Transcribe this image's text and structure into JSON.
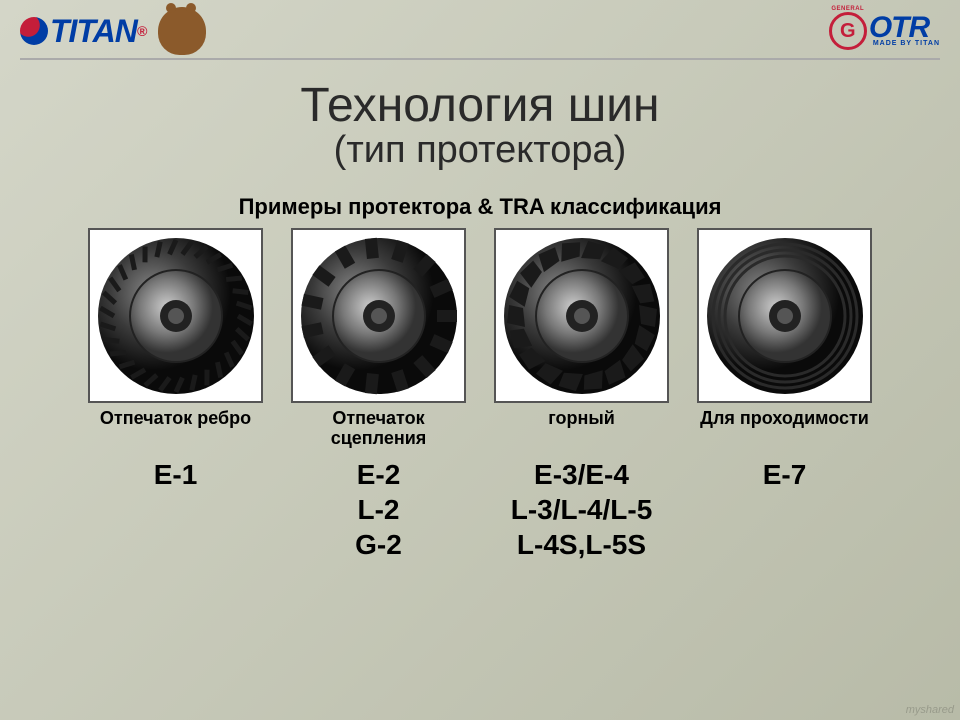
{
  "header": {
    "titan_label": "TITAN",
    "otr_g": "G",
    "otr_general": "GENERAL",
    "otr_main": "OTR",
    "otr_sub": "MADE BY TITAN"
  },
  "title": {
    "main": "Технология шин",
    "sub": "(тип протектора)"
  },
  "section_label": "Примеры протектора & TRA классификация",
  "tires": [
    {
      "desc": "Отпечаток ребро",
      "codes": "E-1",
      "pattern": "zigzag"
    },
    {
      "desc": "Отпечаток сцепления",
      "codes": "E-2\nL-2\nG-2",
      "pattern": "lug"
    },
    {
      "desc": "горный",
      "codes": "E-3/E-4\nL-3/L-4/L-5\nL-4S,L-5S",
      "pattern": "rock"
    },
    {
      "desc": "Для проходимости",
      "codes": "E-7",
      "pattern": "rib"
    }
  ],
  "style": {
    "bg_gradient_from": "#d4d6c8",
    "bg_gradient_to": "#b8bba8",
    "title_color": "#2a2a2a",
    "title_main_fontsize": 48,
    "title_sub_fontsize": 38,
    "section_label_fontsize": 22,
    "desc_fontsize": 18,
    "codes_fontsize": 28,
    "tire_box_border": "#555",
    "tire_box_bg": "#ffffff",
    "titan_blue": "#003da5",
    "general_red": "#c41e3a",
    "divider_color": "#aaaaaa",
    "tire_box_size": 175,
    "tire_gap": 28
  },
  "watermark": "myshared"
}
